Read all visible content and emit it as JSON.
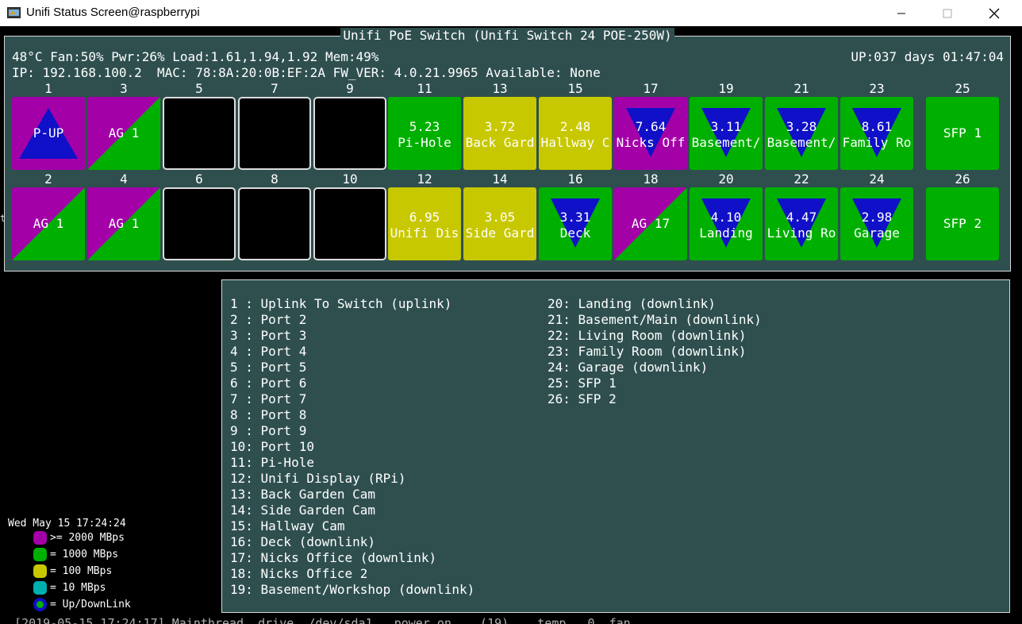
{
  "window": {
    "title": "Unifi Status Screen@raspberrypi"
  },
  "panel": {
    "title": "Unifi PoE Switch (Unifi Switch 24 POE-250W)"
  },
  "status": {
    "line1": "48°C Fan:50% Pwr:26% Load:1.61,1.94,1.92 Mem:49%",
    "uptime": "UP:037 days 01:47:04",
    "line2": "IP: 192.168.100.2  MAC: 78:8A:20:0B:EF:2A FW_VER: 4.0.21.9965 Available: None"
  },
  "colors": {
    "magenta": "#a300a8",
    "green": "#00b000",
    "yellow": "#c8c800",
    "blue": "#1010c8",
    "panel": "#2f4f4f",
    "cyan": "#00b0b0"
  },
  "ports": [
    {
      "num": "1",
      "style": "up-tri",
      "bg": "magenta",
      "label": "P-UP"
    },
    {
      "num": "3",
      "style": "diag",
      "label": "AG 1"
    },
    {
      "num": "5",
      "style": "off"
    },
    {
      "num": "7",
      "style": "off"
    },
    {
      "num": "9",
      "style": "off"
    },
    {
      "num": "11",
      "bg": "green",
      "style": "plain",
      "speed": "5.23",
      "name": "Pi-Hole"
    },
    {
      "num": "13",
      "bg": "yellow",
      "style": "plain",
      "speed": "3.72",
      "name": "Back Gard"
    },
    {
      "num": "15",
      "bg": "yellow",
      "style": "plain",
      "speed": "2.48",
      "name": "Hallway C"
    },
    {
      "num": "17",
      "bg": "magenta",
      "style": "down-tri",
      "speed": "7.64",
      "name": "Nicks Off"
    },
    {
      "num": "19",
      "bg": "green",
      "style": "down-tri",
      "speed": "3.11",
      "name": "Basement/"
    },
    {
      "num": "21",
      "bg": "green",
      "style": "down-tri",
      "speed": "3.28",
      "name": "Basement/"
    },
    {
      "num": "23",
      "bg": "green",
      "style": "down-tri",
      "speed": "8.61",
      "name": "Family Ro"
    },
    {
      "num": "25",
      "bg": "green",
      "style": "sfp",
      "label": "SFP 1"
    },
    {
      "num": "2",
      "style": "diag",
      "label": "AG 1"
    },
    {
      "num": "4",
      "style": "diag",
      "label": "AG 1"
    },
    {
      "num": "6",
      "style": "off"
    },
    {
      "num": "8",
      "style": "off"
    },
    {
      "num": "10",
      "style": "off"
    },
    {
      "num": "12",
      "bg": "yellow",
      "style": "plain",
      "speed": "6.95",
      "name": "Unifi Dis"
    },
    {
      "num": "14",
      "bg": "yellow",
      "style": "plain",
      "speed": "3.05",
      "name": "Side Gard"
    },
    {
      "num": "16",
      "bg": "green",
      "style": "down-tri",
      "speed": "3.31",
      "name": "Deck"
    },
    {
      "num": "18",
      "style": "diag",
      "label": "AG 17"
    },
    {
      "num": "20",
      "bg": "green",
      "style": "down-tri",
      "speed": "4.10",
      "name": "Landing"
    },
    {
      "num": "22",
      "bg": "green",
      "style": "down-tri",
      "speed": "4.47",
      "name": "Living Ro"
    },
    {
      "num": "24",
      "bg": "green",
      "style": "down-tri",
      "speed": "2.98",
      "name": "Garage"
    },
    {
      "num": "26",
      "bg": "green",
      "style": "sfp",
      "label": "SFP 2"
    }
  ],
  "port_legend": {
    "left": [
      "1 : Uplink To Switch (uplink)",
      "2 : Port 2",
      "3 : Port 3",
      "4 : Port 4",
      "5 : Port 5",
      "6 : Port 6",
      "7 : Port 7",
      "8 : Port 8",
      "9 : Port 9",
      "10: Port 10",
      "11: Pi-Hole",
      "12: Unifi Display (RPi)",
      "13: Back Garden Cam",
      "14: Side Garden Cam",
      "15: Hallway Cam",
      "16: Deck (downlink)",
      "17: Nicks Office (downlink)",
      "18: Nicks Office 2",
      "19: Basement/Workshop (downlink)"
    ],
    "right": [
      "20: Landing (downlink)",
      "21: Basement/Main (downlink)",
      "22: Living Room (downlink)",
      "23: Family Room (downlink)",
      "24: Garage (downlink)",
      "25: SFP 1",
      "26: SFP 2"
    ]
  },
  "clock": "Wed May 15 17:24:24",
  "speed_key": [
    {
      "color": "magenta",
      "label": ">= 2000 MBps"
    },
    {
      "color": "green",
      "label": "= 1000 MBps"
    },
    {
      "color": "yellow",
      "label": "= 100 MBps"
    },
    {
      "color": "cyan",
      "label": "= 10 MBps"
    },
    {
      "color": "uplink",
      "label": "= Up/DownLink"
    }
  ],
  "background": {
    "stray_text": "  [2019-05-15 17:24:17] Mainthread  drive  /dev/sda1   power on    (19)    temp   0  fan",
    "edge_mark": "t"
  }
}
